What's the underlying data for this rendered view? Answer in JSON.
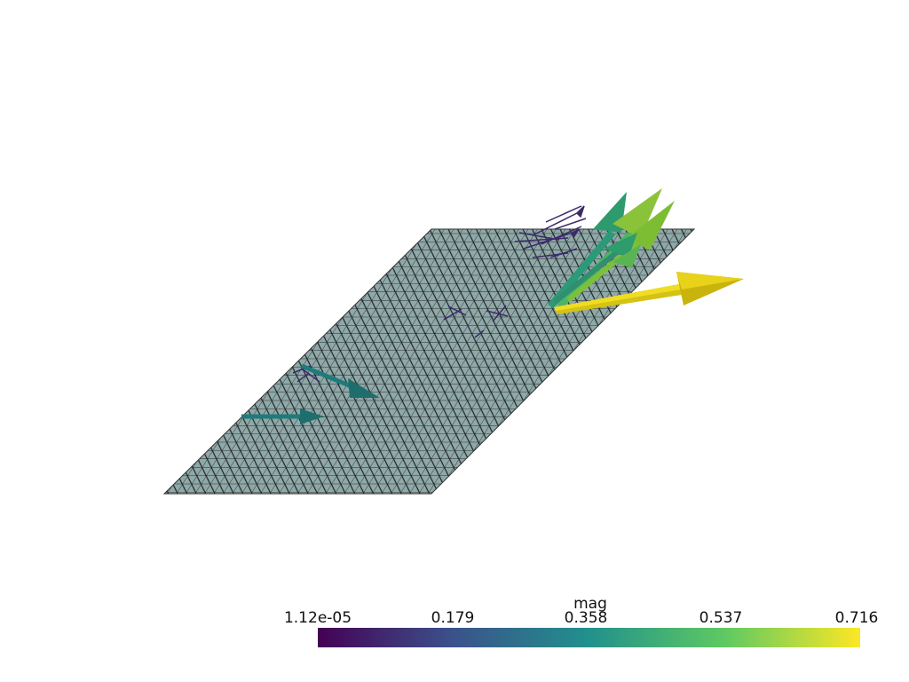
{
  "scene": {
    "mesh_color": "#8fa8a8",
    "edge_color": "#111111"
  },
  "colorbar": {
    "title": "mag",
    "ticks": [
      "1.12e-05",
      "0.179",
      "0.358",
      "0.537",
      "0.716"
    ],
    "min": 1.12e-05,
    "max": 0.716,
    "colormap": "viridis",
    "colors": [
      "#440154",
      "#3b528b",
      "#21918c",
      "#5ec962",
      "#fde725"
    ]
  }
}
